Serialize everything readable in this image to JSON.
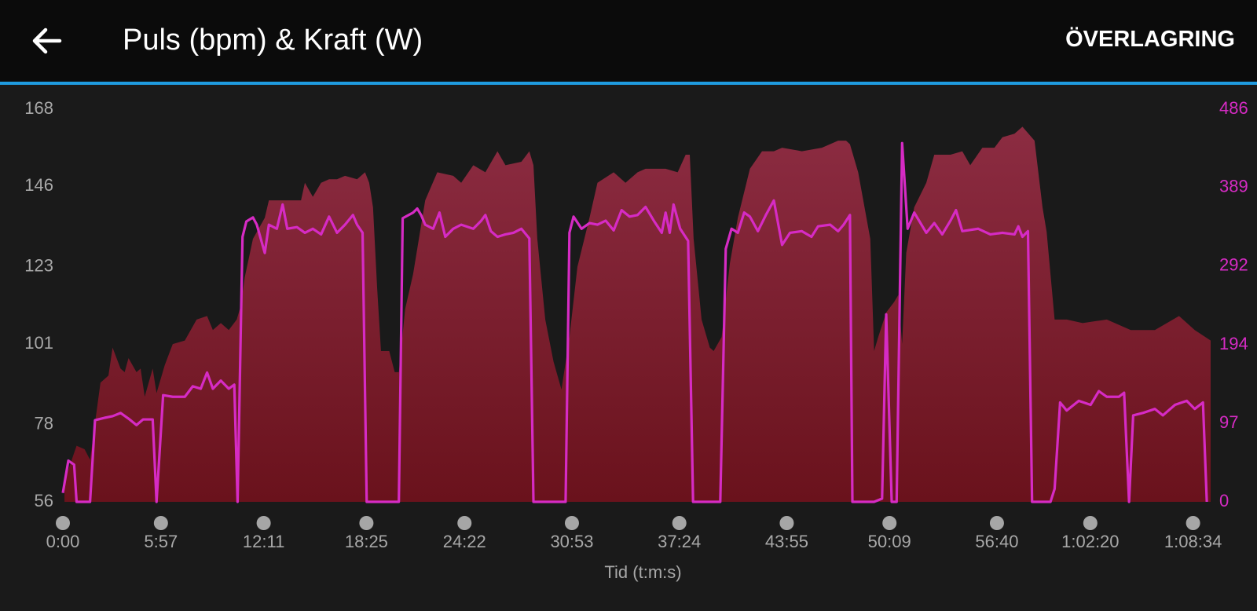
{
  "header": {
    "action": "ÖVERLAGRING"
  },
  "chart_data": {
    "type": "area-line",
    "title": "Puls (bpm) & Kraft (W)",
    "x_label": "Tid (t:m:s)",
    "xlim": [
      0,
      4178
    ],
    "xticks": [
      {
        "value": 0,
        "label": "0:00"
      },
      {
        "value": 357,
        "label": "5:57"
      },
      {
        "value": 731,
        "label": "12:11"
      },
      {
        "value": 1105,
        "label": "18:25"
      },
      {
        "value": 1462,
        "label": "24:22"
      },
      {
        "value": 1853,
        "label": "30:53"
      },
      {
        "value": 2244,
        "label": "37:24"
      },
      {
        "value": 2635,
        "label": "43:55"
      },
      {
        "value": 3009,
        "label": "50:09"
      },
      {
        "value": 3400,
        "label": "56:40"
      },
      {
        "value": 3740,
        "label": "1:02:20"
      },
      {
        "value": 4114,
        "label": "1:08:34"
      }
    ],
    "ylim": [
      56,
      168
    ],
    "yticks": [
      56,
      78,
      101,
      123,
      146,
      168
    ],
    "y2lim": [
      0,
      486
    ],
    "y2ticks": [
      0,
      97,
      194,
      292,
      389,
      486
    ],
    "series": [
      {
        "kind": "area",
        "color": "#7d2333",
        "x": [
          6,
          50,
          79,
          99,
          137,
          166,
          181,
          210,
          225,
          239,
          268,
          283,
          298,
          327,
          341,
          371,
          400,
          444,
          487,
          525,
          546,
          575,
          604,
          633,
          648,
          662,
          692,
          735,
          750,
          794,
          867,
          881,
          910,
          940,
          969,
          998,
          1027,
          1071,
          1100,
          1115,
          1129,
          1144,
          1158,
          1188,
          1208,
          1223,
          1246,
          1275,
          1319,
          1363,
          1421,
          1450,
          1494,
          1538,
          1582,
          1611,
          1669,
          1698,
          1713,
          1727,
          1756,
          1786,
          1815,
          1844,
          1873,
          1917,
          1946,
          2005,
          2048,
          2092,
          2121,
          2194,
          2238,
          2267,
          2282,
          2296,
          2325,
          2355,
          2369,
          2398,
          2428,
          2457,
          2501,
          2545,
          2588,
          2618,
          2690,
          2763,
          2822,
          2851,
          2865,
          2895,
          2939,
          2953,
          2968,
          2997,
          3026,
          3041,
          3055,
          3070,
          3099,
          3143,
          3172,
          3231,
          3274,
          3303,
          3347,
          3391,
          3420,
          3464,
          3493,
          3537,
          3566,
          3581,
          3610,
          3654,
          3712,
          3800,
          3887,
          3975,
          4063,
          4120,
          4178
        ],
        "values": [
          62,
          72,
          71,
          68,
          90,
          92,
          100,
          94,
          93,
          97,
          93,
          94,
          86,
          94,
          87,
          95,
          101,
          102,
          108,
          109,
          105,
          107,
          105,
          108,
          112,
          120,
          131,
          137,
          142,
          142,
          142,
          147,
          143,
          147,
          148,
          148,
          149,
          148,
          150,
          147,
          140,
          117,
          99,
          99,
          93,
          93,
          111,
          121,
          142,
          150,
          149,
          147,
          152,
          150,
          156,
          152,
          153,
          156,
          152,
          131,
          108,
          96,
          88,
          103,
          123,
          137,
          147,
          150,
          147,
          150,
          151,
          151,
          150,
          155,
          155,
          131,
          108,
          100,
          99,
          103,
          124,
          137,
          151,
          156,
          156,
          157,
          156,
          157,
          159,
          159,
          158,
          150,
          131,
          99,
          103,
          110,
          113,
          115,
          101,
          127,
          140,
          147,
          155,
          155,
          156,
          152,
          157,
          157,
          160,
          161,
          163,
          159,
          140,
          133,
          108,
          108,
          107,
          108,
          105,
          105,
          109,
          105,
          102
        ]
      },
      {
        "kind": "line",
        "color": "#d62bc4",
        "axis": "y2",
        "x": [
          0,
          20,
          41,
          50,
          99,
          117,
          152,
          181,
          210,
          239,
          268,
          292,
          327,
          341,
          365,
          400,
          444,
          473,
          502,
          525,
          546,
          575,
          604,
          624,
          636,
          654,
          668,
          692,
          706,
          735,
          750,
          779,
          800,
          817,
          852,
          881,
          910,
          940,
          969,
          998,
          1027,
          1056,
          1071,
          1091,
          1106,
          1223,
          1237,
          1275,
          1290,
          1304,
          1319,
          1348,
          1371,
          1392,
          1421,
          1450,
          1494,
          1523,
          1538,
          1558,
          1582,
          1611,
          1640,
          1669,
          1698,
          1713,
          1830,
          1844,
          1859,
          1888,
          1917,
          1946,
          1976,
          2005,
          2034,
          2063,
          2092,
          2121,
          2151,
          2180,
          2194,
          2209,
          2223,
          2247,
          2276,
          2294,
          2393,
          2413,
          2434,
          2457,
          2480,
          2501,
          2530,
          2559,
          2588,
          2618,
          2647,
          2690,
          2725,
          2749,
          2793,
          2822,
          2842,
          2865,
          2874,
          2953,
          2982,
          2997,
          3017,
          3035,
          3055,
          3075,
          3099,
          3143,
          3172,
          3201,
          3231,
          3251,
          3274,
          3332,
          3376,
          3420,
          3464,
          3478,
          3493,
          3513,
          3528,
          3595,
          3610,
          3630,
          3654,
          3698,
          3741,
          3771,
          3800,
          3844,
          3863,
          3881,
          3896,
          3931,
          3975,
          4004,
          4048,
          4091,
          4120,
          4150,
          4164
        ],
        "values": [
          11,
          51,
          46,
          0,
          0,
          101,
          104,
          106,
          110,
          103,
          95,
          102,
          102,
          0,
          132,
          130,
          130,
          143,
          140,
          160,
          140,
          150,
          140,
          145,
          0,
          328,
          347,
          352,
          343,
          308,
          343,
          338,
          368,
          338,
          340,
          333,
          338,
          331,
          353,
          333,
          343,
          355,
          343,
          333,
          0,
          0,
          351,
          358,
          363,
          355,
          343,
          338,
          358,
          328,
          338,
          343,
          338,
          348,
          355,
          335,
          328,
          331,
          333,
          338,
          326,
          0,
          0,
          333,
          353,
          338,
          345,
          343,
          348,
          336,
          361,
          353,
          355,
          365,
          348,
          333,
          358,
          333,
          368,
          338,
          323,
          0,
          0,
          313,
          338,
          333,
          358,
          353,
          335,
          355,
          373,
          318,
          333,
          335,
          328,
          341,
          343,
          335,
          343,
          355,
          0,
          0,
          4,
          232,
          0,
          0,
          444,
          338,
          358,
          333,
          345,
          331,
          348,
          361,
          335,
          338,
          331,
          333,
          331,
          341,
          328,
          335,
          0,
          0,
          16,
          123,
          113,
          125,
          120,
          137,
          130,
          130,
          135,
          0,
          107,
          110,
          115,
          107,
          120,
          125,
          115,
          123,
          0
        ]
      }
    ]
  }
}
